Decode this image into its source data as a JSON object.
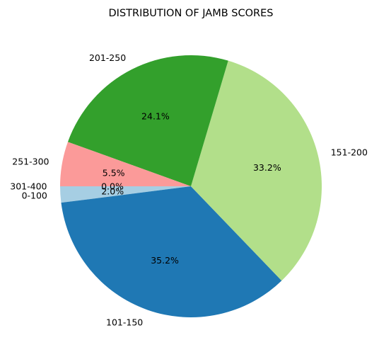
{
  "chart_data": {
    "type": "pie",
    "title": "DISTRIBUTION OF JAMB SCORES",
    "slices": [
      {
        "label": "0-100",
        "value": 2.0,
        "pct_label": "2.0%",
        "color": "#a6cee3"
      },
      {
        "label": "101-150",
        "value": 35.2,
        "pct_label": "35.2%",
        "color": "#1f78b4"
      },
      {
        "label": "151-200",
        "value": 33.2,
        "pct_label": "33.2%",
        "color": "#b2df8a"
      },
      {
        "label": "201-250",
        "value": 24.1,
        "pct_label": "24.1%",
        "color": "#33a02c"
      },
      {
        "label": "251-300",
        "value": 5.5,
        "pct_label": "5.5%",
        "color": "#fb9a99"
      },
      {
        "label": "301-400",
        "value": 0.0,
        "pct_label": "0.0%",
        "color": "#e31a1c"
      }
    ],
    "start_angle_deg": 180,
    "direction": "counterclockwise"
  }
}
